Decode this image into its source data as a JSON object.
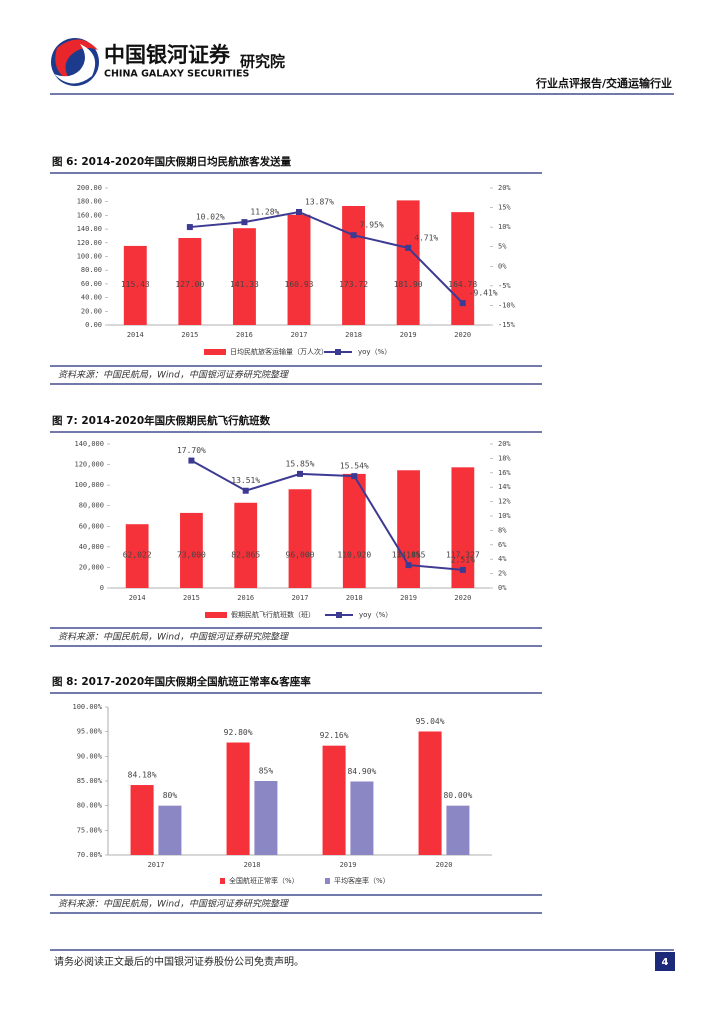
{
  "header": {
    "brand": "中国银河证券",
    "brand_en": "CHINA GALAXY SECURITIES",
    "unit": "研究院",
    "report_type": "行业点评报告/交通运输行业"
  },
  "chart_data": [
    {
      "type": "bar",
      "title": "图 6: 2014-2020年国庆假期日均民航旅客发送量",
      "categories": [
        "2014",
        "2015",
        "2016",
        "2017",
        "2018",
        "2019",
        "2020"
      ],
      "series": [
        {
          "name": "日均民航旅客运输量（万人次）",
          "color": "#f5323a",
          "type": "bar",
          "values": [
            115.43,
            127.0,
            141.33,
            160.93,
            173.72,
            181.9,
            164.78
          ],
          "value_labels": [
            "115.43",
            "127.00",
            "141.33",
            "160.93",
            "173.72",
            "181.90",
            "164.78"
          ]
        },
        {
          "name": "yoy（%）",
          "color": "#3d3a93",
          "type": "line",
          "axis": "y2",
          "values": [
            null,
            10.02,
            11.28,
            13.87,
            7.95,
            4.71,
            -9.41
          ],
          "value_labels": [
            null,
            "10.02%",
            "11.28%",
            "13.87%",
            "7.95%",
            "4.71%",
            "-9.41%"
          ]
        }
      ],
      "ylim": [
        0,
        200
      ],
      "yticks": [
        {
          "value": 0,
          "label": "0.00"
        },
        {
          "value": 20,
          "label": "20.00"
        },
        {
          "value": 40,
          "label": "40.00"
        },
        {
          "value": 60,
          "label": "60.00"
        },
        {
          "value": 80,
          "label": "80.00"
        },
        {
          "value": 100,
          "label": "100.00"
        },
        {
          "value": 120,
          "label": "120.00"
        },
        {
          "value": 140,
          "label": "140.00"
        },
        {
          "value": 160,
          "label": "160.00"
        },
        {
          "value": 180,
          "label": "180.00"
        },
        {
          "value": 200,
          "label": "200.00"
        }
      ],
      "y2lim": [
        -15,
        20
      ],
      "y2ticks": [
        {
          "value": -15,
          "label": "-15%"
        },
        {
          "value": -10,
          "label": "-10%"
        },
        {
          "value": -5,
          "label": "-5%"
        },
        {
          "value": 0,
          "label": "0%"
        },
        {
          "value": 5,
          "label": "5%"
        },
        {
          "value": 10,
          "label": "10%"
        },
        {
          "value": 15,
          "label": "15%"
        },
        {
          "value": 20,
          "label": "20%"
        }
      ],
      "source": "资料来源：中国民航局，Wind，中国银河证券研究院整理"
    },
    {
      "type": "bar",
      "title": "图 7: 2014-2020年国庆假期民航飞行航班数",
      "categories": [
        "2014",
        "2015",
        "2016",
        "2017",
        "2018",
        "2019",
        "2020"
      ],
      "series": [
        {
          "name": "假期民航飞行航班数（班）",
          "color": "#f5323a",
          "type": "bar",
          "values": [
            62022,
            73000,
            82865,
            96000,
            110920,
            114455,
            117327
          ],
          "value_labels": [
            "62,022",
            "73,000",
            "82,865",
            "96,000",
            "110,920",
            "114,455",
            "117,327"
          ]
        },
        {
          "name": "yoy（%）",
          "color": "#3d3a93",
          "type": "line",
          "axis": "y2",
          "values": [
            null,
            17.7,
            13.51,
            15.85,
            15.54,
            3.18,
            2.51
          ],
          "value_labels": [
            null,
            "17.70%",
            "13.51%",
            "15.85%",
            "15.54%",
            "3.18%",
            "2.51%"
          ]
        }
      ],
      "ylim": [
        0,
        140000
      ],
      "yticks": [
        0,
        {
          "value": 20000,
          "label": "20,000"
        },
        {
          "value": 40000,
          "label": "40,000"
        },
        {
          "value": 60000,
          "label": "60,000"
        },
        {
          "value": 80000,
          "label": "80,000"
        },
        {
          "value": 100000,
          "label": "100,000"
        },
        {
          "value": 120000,
          "label": "120,000"
        },
        {
          "value": 140000,
          "label": "140,000"
        }
      ],
      "y2lim": [
        0,
        20
      ],
      "y2ticks": [
        {
          "value": 0,
          "label": "0%"
        },
        {
          "value": 2,
          "label": "2%"
        },
        {
          "value": 4,
          "label": "4%"
        },
        {
          "value": 6,
          "label": "6%"
        },
        {
          "value": 8,
          "label": "8%"
        },
        {
          "value": 10,
          "label": "10%"
        },
        {
          "value": 12,
          "label": "12%"
        },
        {
          "value": 14,
          "label": "14%"
        },
        {
          "value": 16,
          "label": "16%"
        },
        {
          "value": 18,
          "label": "18%"
        },
        {
          "value": 20,
          "label": "20%"
        }
      ],
      "source": "资料来源：中国民航局，Wind，中国银河证券研究院整理"
    },
    {
      "type": "bar",
      "title": "图 8: 2017-2020年国庆假期全国航班正常率&客座率",
      "categories": [
        "2017",
        "2018",
        "2019",
        "2020"
      ],
      "series": [
        {
          "name": "全国航班正常率（%）",
          "color": "#f5323a",
          "type": "bar",
          "values": [
            84.18,
            92.8,
            92.16,
            95.04
          ],
          "value_labels": [
            "84.18%",
            "92.80%",
            "92.16%",
            "95.04%"
          ]
        },
        {
          "name": "平均客座率（%）",
          "color": "#8b86c4",
          "type": "bar",
          "values": [
            80,
            85,
            84.9,
            80.0
          ],
          "value_labels": [
            "80%",
            "85%",
            "84.90%",
            "80.00%"
          ]
        }
      ],
      "ylim": [
        70,
        100
      ],
      "yticks": [
        {
          "value": 70,
          "label": "70.00%"
        },
        {
          "value": 75,
          "label": "75.00%"
        },
        {
          "value": 80,
          "label": "80.00%"
        },
        {
          "value": 85,
          "label": "85.00%"
        },
        {
          "value": 90,
          "label": "90.00%"
        },
        {
          "value": 95,
          "label": "95.00%"
        },
        {
          "value": 100,
          "label": "100.00%"
        }
      ],
      "source": "资料来源：中国民航局，Wind，中国银河证券研究院整理"
    }
  ],
  "footer": {
    "disclaimer": "请务必阅读正文最后的中国银河证券股份公司免责声明。",
    "page": "4"
  }
}
